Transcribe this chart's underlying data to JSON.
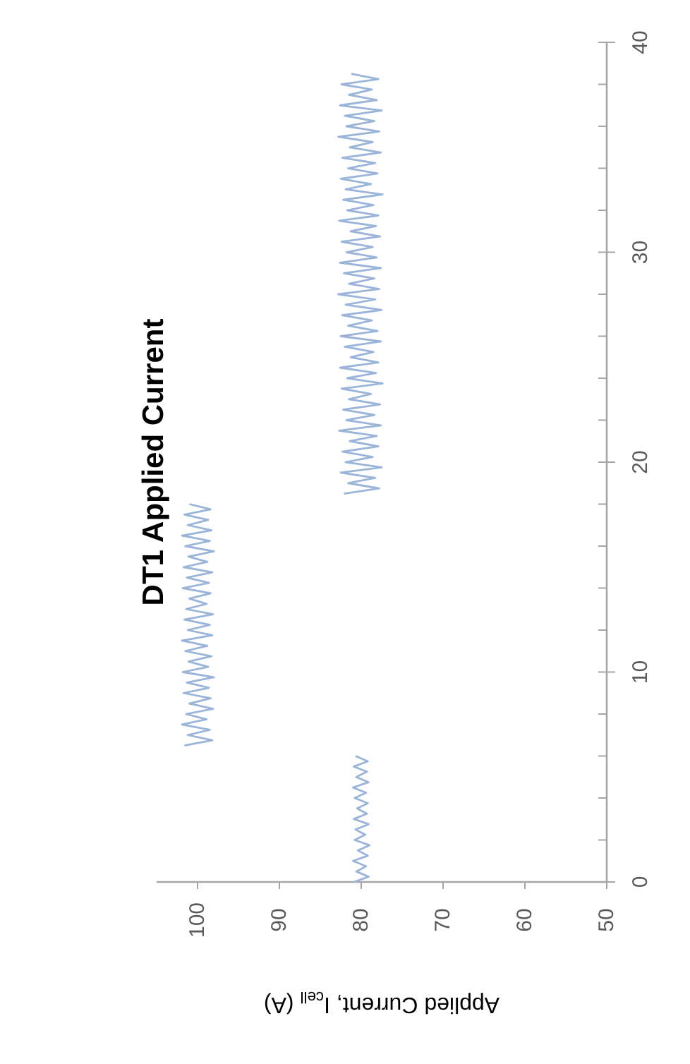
{
  "chart_data": {
    "type": "line",
    "title": "DT1 Applied Current",
    "xlabel": "Applied Current, I$_{cell}$ (A)",
    "xlim": [
      105,
      50
    ],
    "xticks": [
      100,
      90,
      80,
      70,
      60,
      50
    ],
    "ylim": [
      0,
      40
    ],
    "yticks": [
      0,
      {
        "value": 2,
        "label": null
      },
      {
        "value": 4,
        "label": null
      },
      {
        "value": 6,
        "label": null
      },
      {
        "value": 8,
        "label": null
      },
      10,
      {
        "value": 12,
        "label": null
      },
      {
        "value": 14,
        "label": null
      },
      {
        "value": 16,
        "label": null
      },
      {
        "value": 18,
        "label": null
      },
      20,
      {
        "value": 22,
        "label": null
      },
      {
        "value": 24,
        "label": null
      },
      {
        "value": 26,
        "label": null
      },
      {
        "value": 28,
        "label": null
      },
      30,
      {
        "value": 32,
        "label": null
      },
      {
        "value": 34,
        "label": null
      },
      {
        "value": 36,
        "label": null
      },
      {
        "value": 38,
        "label": null
      },
      40
    ],
    "grid": false,
    "marker": "none",
    "line_style": "solid",
    "series": [
      {
        "color": "#9bb5da",
        "x": [
          80.9,
          79.1,
          80.6,
          79.4,
          81,
          79.2,
          80.4,
          79.0,
          80.8,
          79.5,
          80.7,
          79.1,
          80.9,
          79.3,
          80.5,
          79.2,
          80.8,
          79.4,
          81,
          79.1,
          80.6,
          79.3,
          80.9,
          79.2,
          80.7
        ],
        "values": [
          0,
          0.25,
          0.5,
          0.75,
          1,
          1.25,
          1.5,
          1.75,
          2,
          2.25,
          2.5,
          2.75,
          3,
          3.25,
          3.5,
          3.75,
          4,
          4.25,
          4.5,
          4.75,
          5,
          5.25,
          5.5,
          5.75,
          6
        ]
      },
      {
        "color": "#9bb5da",
        "x": [
          101.6,
          98.2,
          101.2,
          98.5,
          101.9,
          98.9,
          101.4,
          98.1,
          101.0,
          98.4,
          101.7,
          98.6,
          101.3,
          98.0,
          101.8,
          98.7,
          101.1,
          98.3,
          101.5,
          98.8,
          101.9,
          98.2,
          101.2,
          98.5,
          101.6,
          98.1,
          101.4,
          98.9,
          101.0,
          98.4,
          101.8,
          98.6,
          101.3,
          98.2,
          101.7,
          98.8,
          101.1,
          98.0,
          101.5,
          98.5,
          101.9,
          98.3,
          101.2,
          98.7,
          101.6,
          98.4,
          101.0
        ],
        "values": [
          6.5,
          6.75,
          7,
          7.25,
          7.5,
          7.75,
          8,
          8.25,
          8.5,
          8.75,
          9,
          9.25,
          9.5,
          9.75,
          10,
          10.25,
          10.5,
          10.75,
          11,
          11.25,
          11.5,
          11.75,
          12,
          12.25,
          12.5,
          12.75,
          13,
          13.25,
          13.5,
          13.75,
          14,
          14.25,
          14.5,
          14.75,
          15,
          15.25,
          15.5,
          15.75,
          16,
          16.25,
          16.5,
          16.75,
          17,
          17.25,
          17.5,
          17.75,
          18
        ]
      },
      {
        "color": "#9bb5da",
        "x": [
          82.1,
          77.8,
          81.6,
          78.3,
          82.5,
          77.5,
          81.9,
          78.6,
          82.3,
          77.9,
          81.4,
          78.1,
          82.7,
          77.6,
          81.8,
          78.4,
          82.2,
          77.7,
          81.5,
          78.8,
          82.4,
          77.4,
          81.7,
          78.2,
          82.6,
          77.9,
          81.3,
          78.5,
          82.0,
          77.6,
          82.5,
          78.0,
          81.6,
          78.7,
          82.3,
          77.5,
          81.9,
          78.3,
          82.8,
          77.8,
          81.5,
          78.4,
          82.1,
          77.6,
          82.6,
          78.1,
          81.8,
          78.6,
          82.4,
          77.7,
          81.3,
          78.2,
          82.7,
          77.9,
          81.7,
          78.5,
          82.2,
          77.4,
          81.9,
          78.8,
          82.5,
          78.0,
          81.6,
          78.3,
          82.3,
          77.6,
          81.4,
          78.6,
          82.8,
          77.8,
          81.8,
          78.4,
          82.0,
          77.5,
          82.6,
          78.1,
          81.5,
          78.7,
          82.4,
          77.9,
          81.2
        ],
        "values": [
          18.5,
          18.75,
          19,
          19.25,
          19.5,
          19.75,
          20,
          20.25,
          20.5,
          20.75,
          21,
          21.25,
          21.5,
          21.75,
          22,
          22.25,
          22.5,
          22.75,
          23,
          23.25,
          23.5,
          23.75,
          24,
          24.25,
          24.5,
          24.75,
          25,
          25.25,
          25.5,
          25.75,
          26,
          26.25,
          26.5,
          26.75,
          27,
          27.25,
          27.5,
          27.75,
          28,
          28.25,
          28.5,
          28.75,
          29,
          29.25,
          29.5,
          29.75,
          30,
          30.25,
          30.5,
          30.75,
          31,
          31.25,
          31.5,
          31.75,
          32,
          32.25,
          32.5,
          32.75,
          33,
          33.25,
          33.5,
          33.75,
          34,
          34.25,
          34.5,
          34.75,
          35,
          35.25,
          35.5,
          35.75,
          36,
          36.25,
          36.5,
          36.75,
          37,
          37.25,
          37.5,
          37.75,
          38,
          38.25,
          38.5
        ]
      }
    ]
  }
}
